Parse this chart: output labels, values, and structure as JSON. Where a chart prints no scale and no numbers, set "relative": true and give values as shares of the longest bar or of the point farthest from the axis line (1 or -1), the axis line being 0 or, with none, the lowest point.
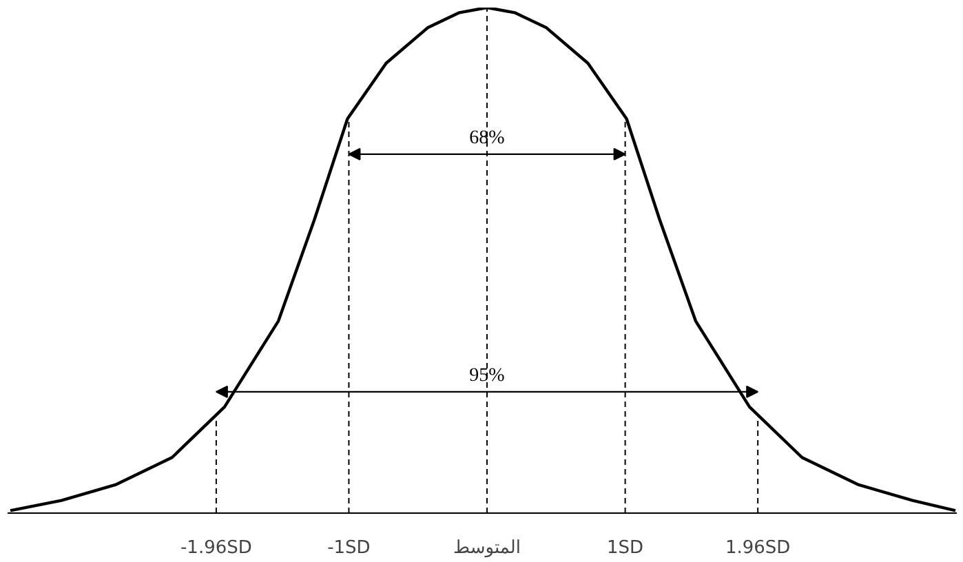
{
  "chart_data": {
    "type": "line",
    "relative": true,
    "x": [
      -3.45,
      -3.08,
      -2.69,
      -2.28,
      -1.9,
      -1.51,
      -1.25,
      -1.01,
      -0.73,
      -0.43,
      -0.2,
      0,
      0.2,
      0.43,
      0.73,
      1.01,
      1.25,
      1.51,
      1.9,
      2.28,
      2.69,
      3.08,
      3.39
    ],
    "series": [
      {
        "color": "#000000",
        "values": [
          0.005,
          0.025,
          0.056,
          0.11,
          0.21,
          0.38,
          0.58,
          0.78,
          0.89,
          0.96,
          0.99,
          1,
          0.99,
          0.96,
          0.89,
          0.78,
          0.58,
          0.38,
          0.21,
          0.11,
          0.056,
          0.025,
          0.005
        ]
      }
    ],
    "xlim": [
      -3.47,
      3.4
    ],
    "xticks": [
      {
        "value": -1.96,
        "label": "-1.96SD"
      },
      {
        "value": -1,
        "label": "-1SD"
      },
      {
        "value": 0,
        "label": "المتوسط"
      },
      {
        "value": 1,
        "label": "1SD"
      },
      {
        "value": 1.96,
        "label": "1.96SD"
      }
    ],
    "ref_lines": [
      {
        "axis": "x",
        "value": -1.96,
        "line_style": "dashed",
        "color": "#000000"
      },
      {
        "axis": "x",
        "value": -1,
        "line_style": "dashed",
        "color": "#000000"
      },
      {
        "axis": "x",
        "value": 0,
        "line_style": "dashed",
        "color": "#000000"
      },
      {
        "axis": "x",
        "value": 1,
        "line_style": "dashed",
        "color": "#000000"
      },
      {
        "axis": "x",
        "value": 1.96,
        "line_style": "dashed",
        "color": "#000000"
      }
    ],
    "annotations": [
      {
        "text": "68%",
        "x": 0,
        "y": 0.71
      },
      {
        "text": "95%",
        "x": 0,
        "y": 0.24
      }
    ],
    "grid": false,
    "line_style": "solid",
    "marker": "none"
  }
}
